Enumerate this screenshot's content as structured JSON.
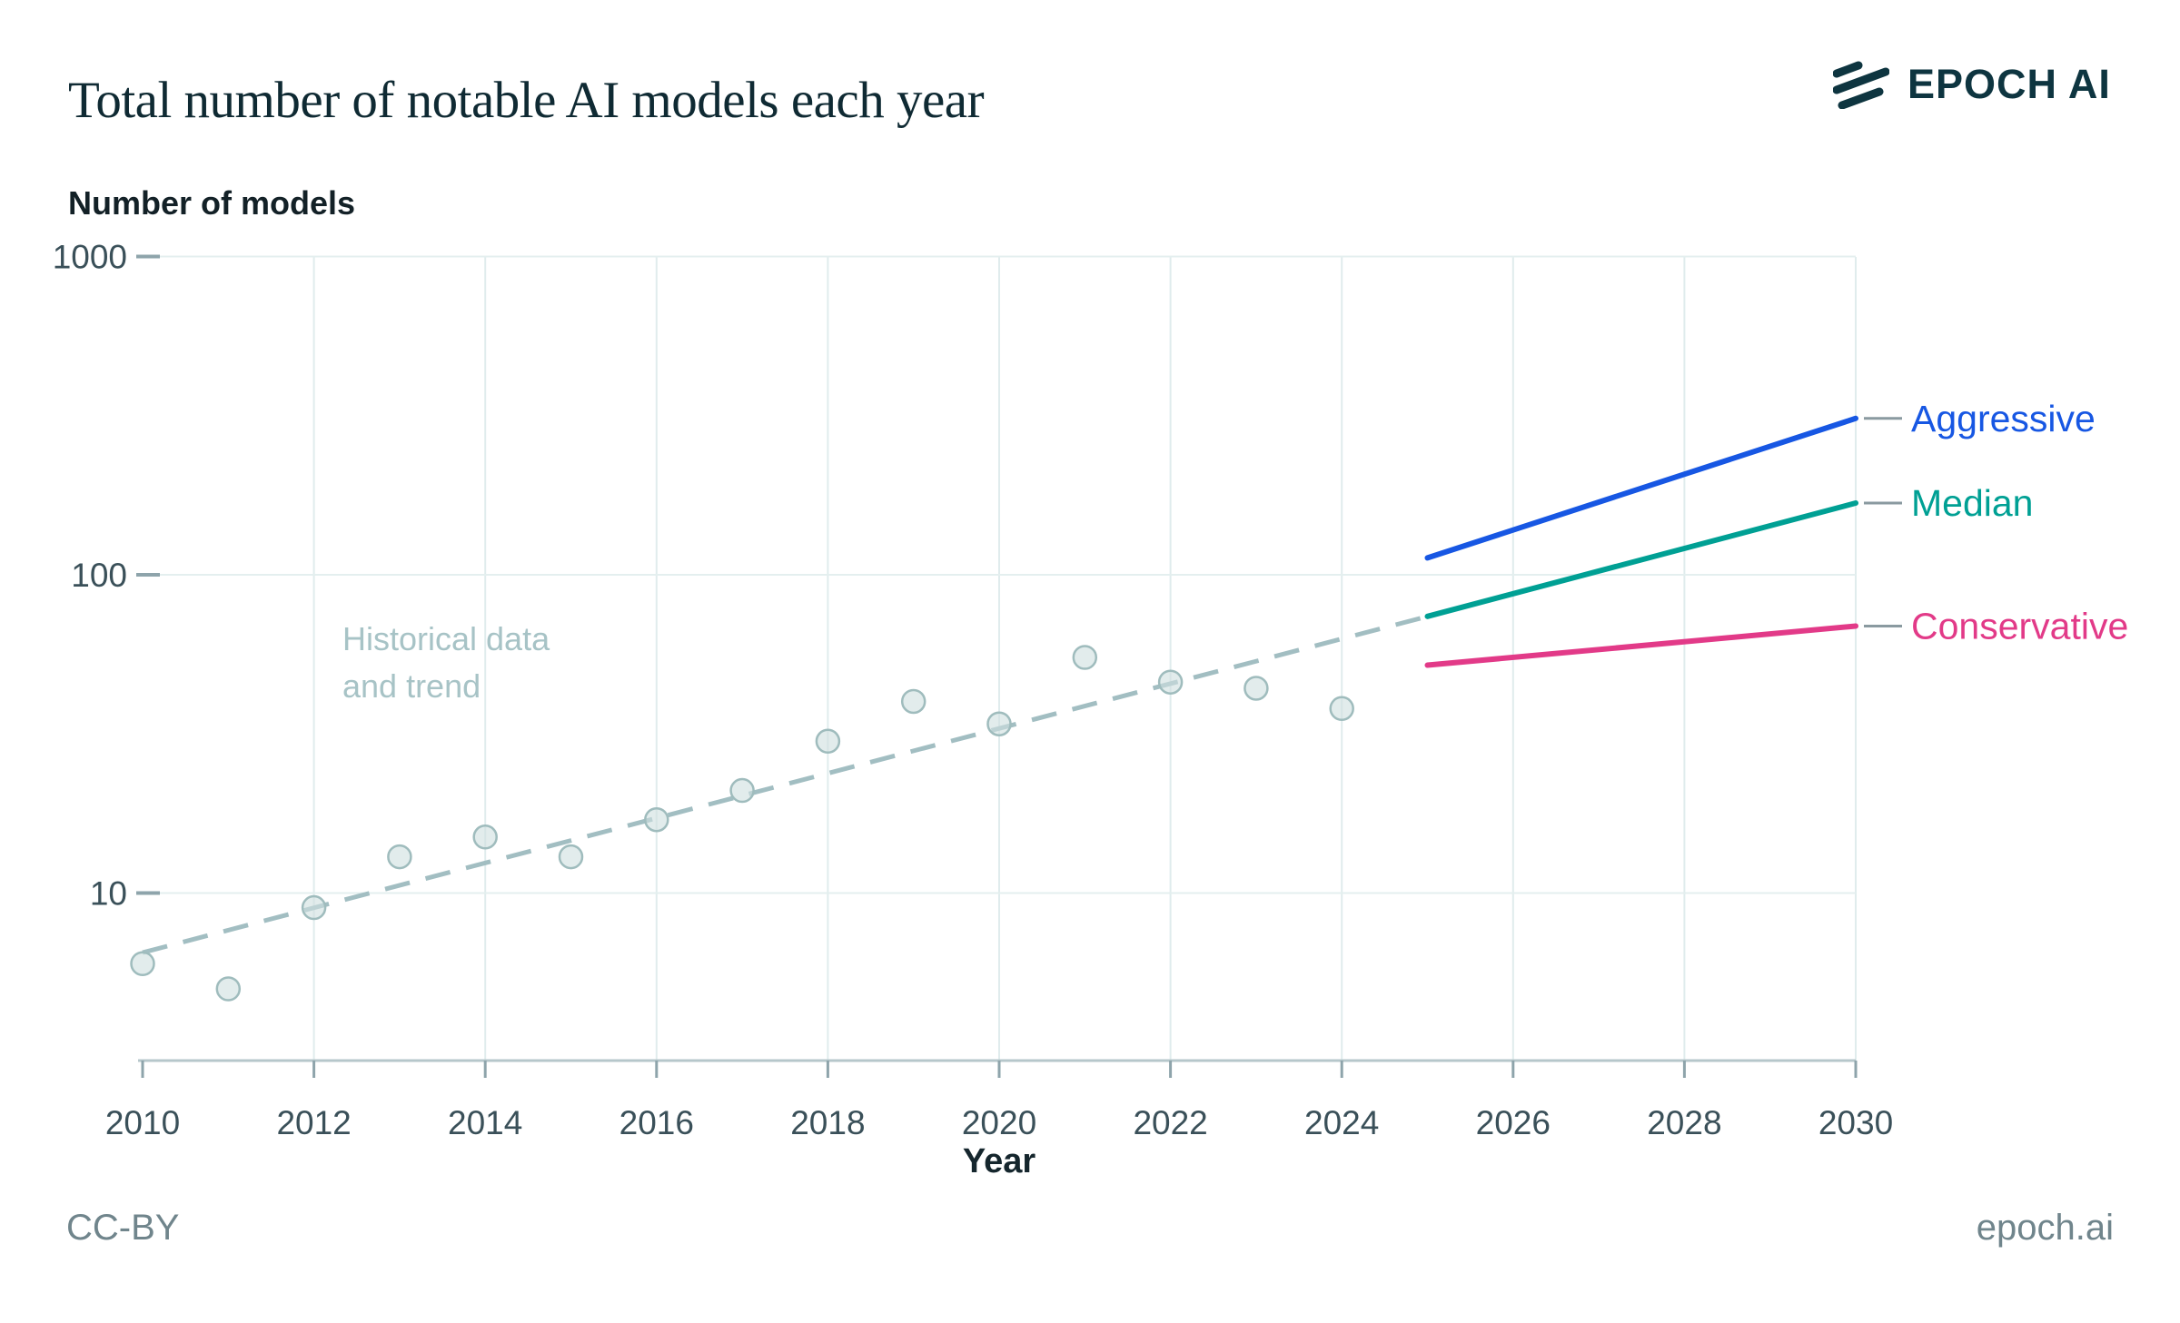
{
  "header": {
    "brand": "EPOCH AI"
  },
  "chart_data": {
    "type": "scatter",
    "title": "Total number of notable AI models each year",
    "ylabel": "Number of models",
    "xlabel": "Year",
    "y_scale": "log",
    "grid": true,
    "xlim": [
      2010,
      2030
    ],
    "ylim": [
      3,
      1000
    ],
    "x_ticks": [
      2010,
      2012,
      2014,
      2016,
      2018,
      2020,
      2022,
      2024,
      2026,
      2028,
      2030
    ],
    "y_ticks": [
      10,
      100,
      1000
    ],
    "historical": {
      "label": "Historical data\nand trend",
      "label_color": "#a7c3c6",
      "point_fill": "#cfe0e0",
      "point_stroke": "#9fbcbd",
      "points": [
        {
          "year": 2010,
          "value": 6
        },
        {
          "year": 2011,
          "value": 5
        },
        {
          "year": 2012,
          "value": 9
        },
        {
          "year": 2013,
          "value": 13
        },
        {
          "year": 2014,
          "value": 15
        },
        {
          "year": 2015,
          "value": 13
        },
        {
          "year": 2016,
          "value": 17
        },
        {
          "year": 2017,
          "value": 21
        },
        {
          "year": 2018,
          "value": 30
        },
        {
          "year": 2019,
          "value": 40
        },
        {
          "year": 2020,
          "value": 34
        },
        {
          "year": 2021,
          "value": 55
        },
        {
          "year": 2022,
          "value": 46
        },
        {
          "year": 2023,
          "value": 44
        },
        {
          "year": 2024,
          "value": 38
        }
      ]
    },
    "trend": {
      "color": "#a2bec2",
      "style": "dashed",
      "start": {
        "year": 2010,
        "value": 6.5
      },
      "end": {
        "year": 2025,
        "value": 74
      }
    },
    "projections": [
      {
        "name": "Aggressive",
        "color": "#1757e3",
        "points": [
          {
            "year": 2025,
            "value": 113
          },
          {
            "year": 2030,
            "value": 310
          }
        ]
      },
      {
        "name": "Median",
        "color": "#00a094",
        "points": [
          {
            "year": 2025,
            "value": 74
          },
          {
            "year": 2030,
            "value": 168
          }
        ]
      },
      {
        "name": "Conservative",
        "color": "#e23a88",
        "points": [
          {
            "year": 2025,
            "value": 52
          },
          {
            "year": 2030,
            "value": 69
          }
        ]
      }
    ],
    "projection_labels_position": "right"
  },
  "footer": {
    "license": "CC-BY",
    "site": "epoch.ai"
  }
}
